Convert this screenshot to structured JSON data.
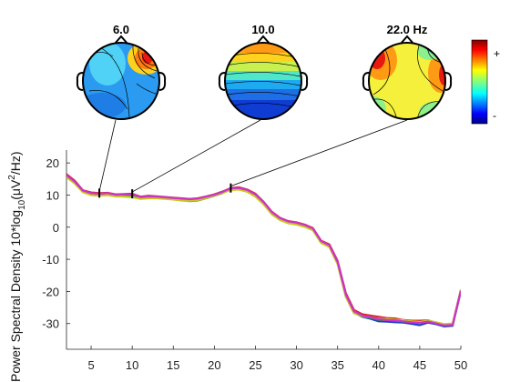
{
  "chart_data": {
    "type": "line",
    "ylabel_prefix": "Power Spectral Density 10*log",
    "ylabel_sub": "10",
    "ylabel_mid": "(μV",
    "ylabel_sup": "2",
    "ylabel_suffix": "/Hz)",
    "xlim": [
      2,
      50
    ],
    "ylim": [
      -38,
      24
    ],
    "x_ticks": [
      5,
      10,
      15,
      20,
      25,
      30,
      35,
      40,
      45,
      50
    ],
    "y_ticks": [
      20,
      10,
      0,
      -10,
      -20,
      -30
    ],
    "x_tick_labels": [
      "5",
      "10",
      "15",
      "20",
      "25",
      "30",
      "35",
      "40",
      "45",
      "50"
    ],
    "y_tick_labels": [
      "20",
      "10",
      "0",
      "-10",
      "-20",
      "-30"
    ],
    "x": [
      2,
      3,
      4,
      5,
      6,
      7,
      8,
      9,
      10,
      11,
      12,
      13,
      14,
      15,
      16,
      17,
      18,
      19,
      20,
      21,
      22,
      23,
      24,
      25,
      26,
      27,
      28,
      29,
      30,
      31,
      32,
      33,
      34,
      35,
      36,
      37,
      38,
      39,
      40,
      41,
      42,
      43,
      44,
      45,
      46,
      47,
      48,
      49,
      50
    ],
    "series": [
      {
        "color": "#d62728",
        "values": [
          16.5,
          14.5,
          11.5,
          10.8,
          10.6,
          10.7,
          10.2,
          10.3,
          10.4,
          9.5,
          9.8,
          9.6,
          9.4,
          9.2,
          9.0,
          8.8,
          9.0,
          9.6,
          10.2,
          11.1,
          12.2,
          12.4,
          11.7,
          10.4,
          7.9,
          4.8,
          2.9,
          1.9,
          1.5,
          0.8,
          -0.3,
          -4.2,
          -5.4,
          -10.5,
          -20.5,
          -25.8,
          -27.1,
          -27.5,
          -27.9,
          -28.3,
          -28.4,
          -28.9,
          -29.1,
          -29.1,
          -29.0,
          -29.8,
          -30.3,
          -30.2,
          -19.5
        ]
      },
      {
        "color": "#1f3fbf",
        "values": [
          16.0,
          14.0,
          11.2,
          10.4,
          10.2,
          10.5,
          10.0,
          10.0,
          10.0,
          9.2,
          9.4,
          9.4,
          9.1,
          9.0,
          8.7,
          8.6,
          8.8,
          9.3,
          10.0,
          10.9,
          12.0,
          12.1,
          11.5,
          10.0,
          7.6,
          4.5,
          2.6,
          1.6,
          1.2,
          0.5,
          -0.6,
          -4.5,
          -5.8,
          -11.0,
          -21.2,
          -26.5,
          -27.9,
          -28.5,
          -29.3,
          -29.4,
          -29.6,
          -29.7,
          -30.1,
          -30.5,
          -29.7,
          -30.2,
          -30.9,
          -30.7,
          -20.0
        ]
      },
      {
        "color": "#2ca02c",
        "values": [
          15.8,
          13.8,
          11.0,
          10.2,
          10.0,
          10.3,
          9.8,
          9.7,
          9.6,
          9.0,
          9.2,
          9.2,
          9.0,
          8.7,
          8.4,
          8.1,
          8.3,
          9.0,
          9.8,
          10.6,
          11.8,
          11.9,
          11.2,
          9.7,
          7.3,
          4.2,
          2.3,
          1.3,
          0.9,
          0.2,
          -0.9,
          -4.8,
          -6.0,
          -11.3,
          -21.5,
          -26.7,
          -27.8,
          -28.2,
          -28.8,
          -28.9,
          -29.1,
          -29.3,
          -29.6,
          -29.8,
          -29.3,
          -29.9,
          -30.5,
          -30.4,
          -19.8
        ]
      },
      {
        "color": "#c8c81e",
        "values": [
          15.6,
          13.6,
          10.9,
          10.0,
          9.8,
          10.0,
          9.6,
          9.5,
          9.3,
          8.8,
          9.0,
          9.0,
          8.8,
          8.6,
          8.3,
          8.2,
          8.4,
          9.1,
          9.9,
          10.7,
          11.6,
          11.7,
          11.0,
          9.5,
          7.1,
          4.0,
          2.2,
          1.2,
          0.8,
          0.1,
          -1.0,
          -4.9,
          -6.2,
          -11.5,
          -21.7,
          -26.8,
          -27.6,
          -28.0,
          -28.5,
          -28.6,
          -28.8,
          -29.0,
          -29.3,
          -29.5,
          -29.1,
          -29.6,
          -30.2,
          -30.0,
          -19.6
        ]
      },
      {
        "color": "#cc33cc",
        "values": [
          16.2,
          14.2,
          11.4,
          10.6,
          10.4,
          10.6,
          10.1,
          10.2,
          10.2,
          9.4,
          9.6,
          9.5,
          9.3,
          9.1,
          8.9,
          8.7,
          8.9,
          9.5,
          10.1,
          11.0,
          12.1,
          12.2,
          11.6,
          10.2,
          7.8,
          4.7,
          2.8,
          1.8,
          1.4,
          0.7,
          -0.4,
          -4.3,
          -5.6,
          -10.8,
          -20.9,
          -26.2,
          -27.5,
          -28.0,
          -28.6,
          -28.9,
          -29.0,
          -29.3,
          -29.6,
          -29.8,
          -29.4,
          -30.0,
          -30.6,
          -30.4,
          -19.8
        ]
      }
    ],
    "markers_hz": [
      6,
      10,
      22
    ],
    "topo_titles": [
      "6.0",
      "10.0",
      "22.0 Hz"
    ],
    "colorbar": {
      "top_label": "+",
      "bottom_label": "-"
    }
  }
}
